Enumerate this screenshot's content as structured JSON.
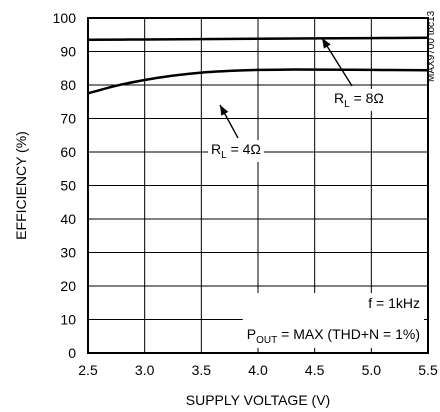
{
  "chart_data": {
    "type": "line",
    "xlabel": "SUPPLY VOLTAGE (V)",
    "ylabel": "EFFICIENCY (%)",
    "xlim": [
      2.5,
      5.5
    ],
    "ylim": [
      0,
      100
    ],
    "x_ticks": [
      "2.5",
      "3.0",
      "3.5",
      "4.0",
      "4.5",
      "5.0",
      "5.5"
    ],
    "y_ticks": [
      "0",
      "10",
      "20",
      "30",
      "40",
      "50",
      "60",
      "70",
      "80",
      "90",
      "100"
    ],
    "grid": true,
    "series": [
      {
        "label": {
          "prefix": "R",
          "sub": "L",
          "suffix": " = 8Ω"
        },
        "x": [
          2.5,
          3.0,
          3.5,
          4.0,
          4.5,
          5.0,
          5.5
        ],
        "y": [
          93.5,
          93.6,
          93.7,
          93.8,
          93.9,
          94.0,
          94.1
        ]
      },
      {
        "label": {
          "prefix": "R",
          "sub": "L",
          "suffix": " = 4Ω"
        },
        "x": [
          2.5,
          2.75,
          3.0,
          3.25,
          3.5,
          3.75,
          4.0,
          4.25,
          4.5,
          5.0,
          5.5
        ],
        "y": [
          77.5,
          79.8,
          81.5,
          82.8,
          83.7,
          84.2,
          84.5,
          84.6,
          84.6,
          84.5,
          84.4
        ]
      }
    ],
    "annotations": {
      "condition_freq": "f = 1kHz",
      "condition_pout": {
        "prefix": "P",
        "sub": "OUT",
        "suffix": " = MAX (THD+N = 1%)"
      },
      "figure_code": "MAX9700 toc13"
    }
  }
}
